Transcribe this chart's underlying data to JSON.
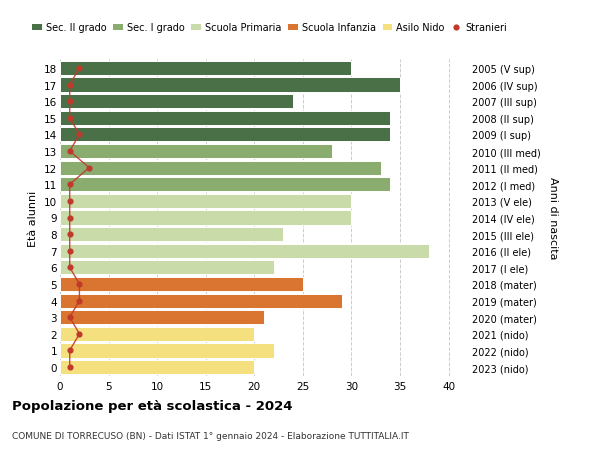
{
  "ages": [
    18,
    17,
    16,
    15,
    14,
    13,
    12,
    11,
    10,
    9,
    8,
    7,
    6,
    5,
    4,
    3,
    2,
    1,
    0
  ],
  "values": [
    30,
    35,
    24,
    34,
    34,
    28,
    33,
    34,
    30,
    30,
    23,
    38,
    22,
    25,
    29,
    21,
    20,
    22,
    20
  ],
  "stranieri": [
    2,
    1,
    1,
    1,
    2,
    1,
    3,
    1,
    1,
    1,
    1,
    1,
    1,
    2,
    2,
    1,
    2,
    1,
    1
  ],
  "right_labels": [
    "2005 (V sup)",
    "2006 (IV sup)",
    "2007 (III sup)",
    "2008 (II sup)",
    "2009 (I sup)",
    "2010 (III med)",
    "2011 (II med)",
    "2012 (I med)",
    "2013 (V ele)",
    "2014 (IV ele)",
    "2015 (III ele)",
    "2016 (II ele)",
    "2017 (I ele)",
    "2018 (mater)",
    "2019 (mater)",
    "2020 (mater)",
    "2021 (nido)",
    "2022 (nido)",
    "2023 (nido)"
  ],
  "colors": {
    "sec2": "#4a7048",
    "sec1": "#8aac6e",
    "primaria": "#c8dba8",
    "infanzia": "#d97530",
    "nido": "#f5e080"
  },
  "bar_colors": [
    "#4a7048",
    "#4a7048",
    "#4a7048",
    "#4a7048",
    "#4a7048",
    "#8aac6e",
    "#8aac6e",
    "#8aac6e",
    "#c8dba8",
    "#c8dba8",
    "#c8dba8",
    "#c8dba8",
    "#c8dba8",
    "#d97530",
    "#d97530",
    "#d97530",
    "#f5e080",
    "#f5e080",
    "#f5e080"
  ],
  "stranieri_color": "#c0392b",
  "title_main": "Popolazione per età scolastica - 2024",
  "title_sub": "COMUNE DI TORRECUSO (BN) - Dati ISTAT 1° gennaio 2024 - Elaborazione TUTTITALIA.IT",
  "ylabel": "Età alunni",
  "ylabel_right": "Anni di nascita",
  "xlim": [
    0,
    42
  ],
  "background_color": "#ffffff",
  "grid_color": "#cccccc",
  "legend_labels": [
    "Sec. II grado",
    "Sec. I grado",
    "Scuola Primaria",
    "Scuola Infanzia",
    "Asilo Nido",
    "Stranieri"
  ]
}
